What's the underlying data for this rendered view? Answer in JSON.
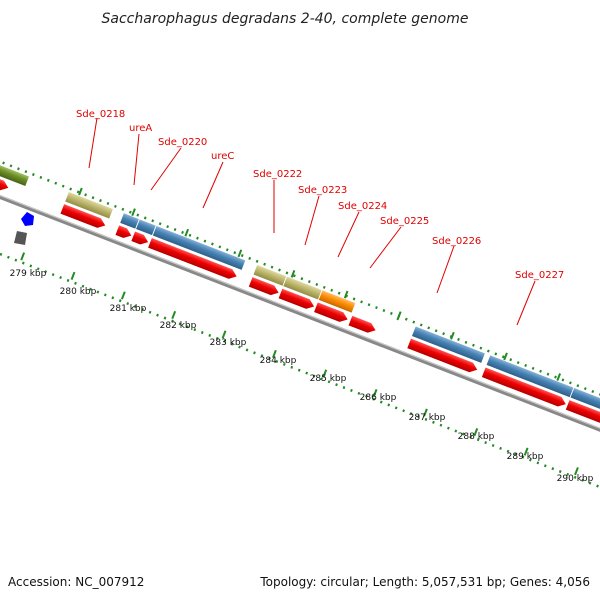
{
  "title": "Saccharophagus degradans 2-40, complete genome",
  "footer": {
    "accession": "Accession: NC_007912",
    "topology": "Topology: circular; Length: 5,057,531 bp; Genes: 4,056"
  },
  "scale_labels": [
    "279 kbp",
    "280 kbp",
    "281 kbp",
    "282 kbp",
    "283 kbp",
    "284 kbp",
    "285 kbp",
    "286 kbp",
    "287 kbp",
    "288 kbp",
    "289 kbp",
    "290 kbp"
  ],
  "gene_labels": [
    "Sde_0218",
    "ureA",
    "Sde_0220",
    "ureC",
    "Sde_0222",
    "Sde_0223",
    "Sde_0224",
    "Sde_0225",
    "Sde_0226",
    "Sde_0227"
  ],
  "colors": {
    "cds_red": "#ee0000",
    "cog_blue": "#4682b4",
    "cog_khaki": "#bdb76b",
    "cog_orange": "#ff8c00",
    "cog_olive": "#6b8e23",
    "backbone": "#888888",
    "tick_green": "#228b22",
    "label_red": "#e00000",
    "marker_blue": "#0000ff",
    "marker_gray": "#555555"
  }
}
